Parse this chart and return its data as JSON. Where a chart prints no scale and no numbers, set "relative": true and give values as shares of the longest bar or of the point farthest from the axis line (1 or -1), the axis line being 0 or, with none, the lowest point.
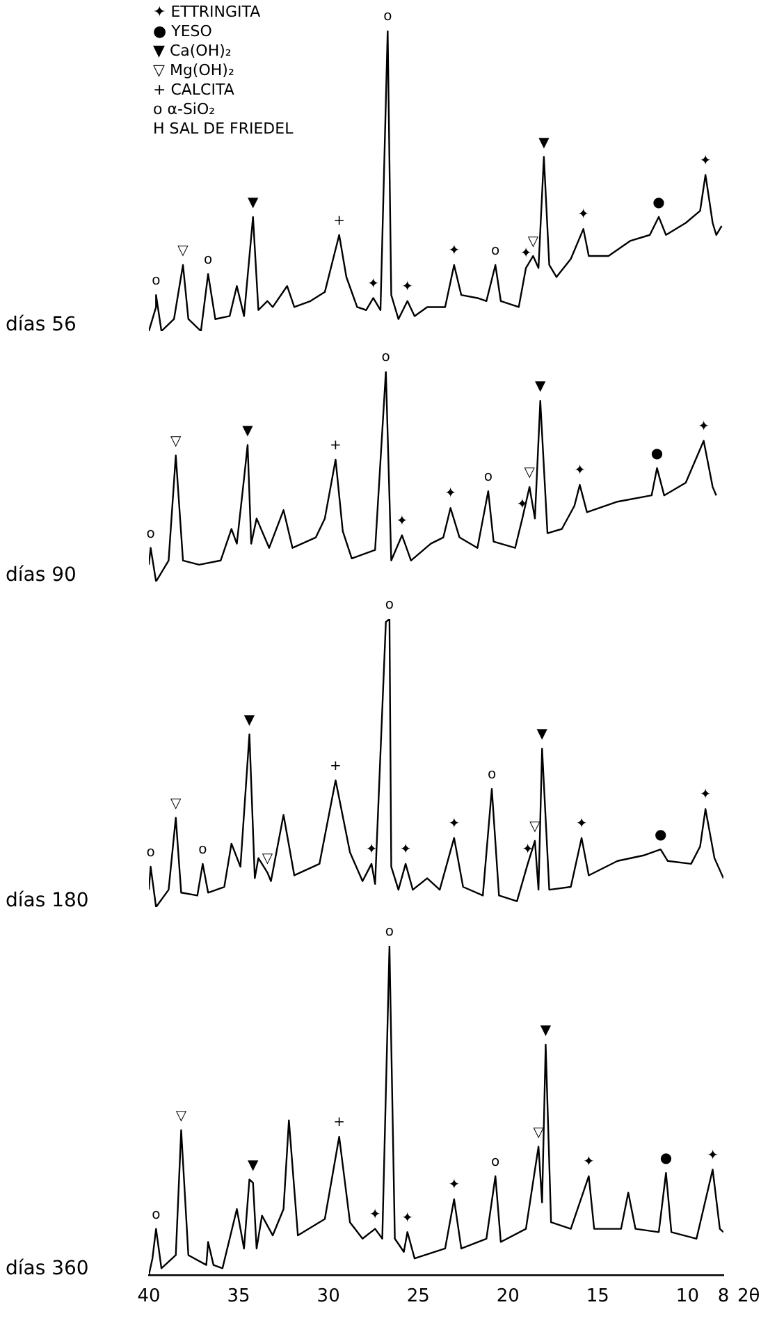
{
  "chart_data": [
    {
      "type": "line",
      "relative": true,
      "xlim": [
        40,
        8
      ],
      "tick_labels": false,
      "series": [
        {
          "name": "días 56",
          "color": "#000000",
          "x": [
            40,
            39.6,
            39.6,
            39.3,
            38.6,
            38.1,
            37.8,
            37.1,
            36.7,
            36.3,
            35.5,
            35.1,
            34.7,
            34.2,
            33.9,
            33.4,
            33.1,
            32.3,
            31.9,
            31,
            30.2,
            29.4,
            29,
            28.4,
            27.9,
            27.5,
            27.1,
            26.7,
            26.5,
            26.1,
            25.6,
            25.2,
            24.5,
            23.5,
            23,
            22.6,
            21.7,
            21.2,
            20.7,
            20.4,
            19.4,
            19,
            18.6,
            18.3,
            18,
            17.7,
            17.3,
            16.5,
            15.8,
            15.5,
            14.4,
            13.2,
            12.1,
            11.6,
            11.2,
            10.1,
            9.3,
            9,
            8.6,
            8.4,
            8.1
          ],
          "values": [
            0,
            0.08,
            0.12,
            0,
            0.04,
            0.22,
            0.04,
            0,
            0.19,
            0.04,
            0.05,
            0.15,
            0.05,
            0.38,
            0.07,
            0.1,
            0.08,
            0.15,
            0.08,
            0.1,
            0.13,
            0.32,
            0.18,
            0.08,
            0.07,
            0.11,
            0.07,
            1.0,
            0.12,
            0.04,
            0.1,
            0.05,
            0.08,
            0.08,
            0.22,
            0.12,
            0.11,
            0.1,
            0.22,
            0.1,
            0.08,
            0.21,
            0.25,
            0.21,
            0.58,
            0.22,
            0.18,
            0.24,
            0.34,
            0.25,
            0.25,
            0.3,
            0.32,
            0.38,
            0.32,
            0.36,
            0.4,
            0.52,
            0.36,
            0.32,
            0.35
          ]
        }
      ],
      "annotations": [
        "✦ ETTRINGITA",
        "● YESO",
        "▼ Ca(OH)₂",
        "▽ Mg(OH)₂",
        "+ CALCITA",
        "o α-SiO₂",
        "H SAL DE FRIEDEL",
        {
          "text": "o",
          "x": 39.6,
          "y": 0.12
        },
        {
          "text": "▽",
          "x": 38.1,
          "y": 0.22
        },
        {
          "text": "o",
          "x": 36.7,
          "y": 0.19
        },
        {
          "text": "▼",
          "x": 34.2,
          "y": 0.38
        },
        {
          "text": "+",
          "x": 29.4,
          "y": 0.32
        },
        {
          "text": "✦",
          "x": 27.5,
          "y": 0.11
        },
        {
          "text": "o",
          "x": 26.7,
          "y": 1.0
        },
        {
          "text": "✦",
          "x": 25.6,
          "y": 0.1
        },
        {
          "text": "✦",
          "x": 23,
          "y": 0.22
        },
        {
          "text": "o",
          "x": 20.7,
          "y": 0.22
        },
        {
          "text": "✦",
          "x": 19,
          "y": 0.21
        },
        {
          "text": "▽",
          "x": 18.6,
          "y": 0.25
        },
        {
          "text": "▼",
          "x": 18,
          "y": 0.58
        },
        {
          "text": "✦",
          "x": 15.8,
          "y": 0.34
        },
        {
          "text": "●",
          "x": 11.6,
          "y": 0.38
        },
        {
          "text": "✦",
          "x": 9,
          "y": 0.52
        }
      ]
    },
    {
      "type": "line",
      "relative": true,
      "xlim": [
        40,
        8
      ],
      "tick_labels": false,
      "series": [
        {
          "name": "días 90",
          "color": "#000000",
          "x": [
            40,
            39.9,
            39.6,
            38.9,
            38.5,
            38.1,
            37.2,
            36,
            35.4,
            35.1,
            34.7,
            34.5,
            34.3,
            34,
            33.3,
            32.5,
            32,
            30.7,
            30.2,
            29.6,
            29.2,
            28.7,
            27.4,
            26.8,
            26.5,
            25.9,
            25.4,
            24.3,
            23.6,
            23.2,
            22.7,
            21.7,
            21.1,
            20.8,
            19.6,
            19.2,
            18.8,
            18.5,
            18.2,
            17.8,
            17,
            16.3,
            16,
            15.6,
            13.9,
            12,
            11.7,
            11.3,
            10.1,
            9.1,
            8.6,
            8.4
          ],
          "values": [
            0.08,
            0.16,
            0,
            0.1,
            0.6,
            0.1,
            0.08,
            0.1,
            0.25,
            0.18,
            0.49,
            0.65,
            0.18,
            0.3,
            0.16,
            0.34,
            0.16,
            0.21,
            0.3,
            0.58,
            0.24,
            0.11,
            0.15,
            1.0,
            0.1,
            0.22,
            0.1,
            0.18,
            0.21,
            0.35,
            0.21,
            0.16,
            0.43,
            0.19,
            0.16,
            0.3,
            0.45,
            0.3,
            0.86,
            0.23,
            0.25,
            0.36,
            0.46,
            0.33,
            0.38,
            0.41,
            0.54,
            0.41,
            0.47,
            0.67,
            0.45,
            0.41
          ]
        }
      ],
      "annotations": [
        {
          "text": "o",
          "x": 39.9,
          "y": 0.16
        },
        {
          "text": "▽",
          "x": 38.5,
          "y": 0.6
        },
        {
          "text": "▼",
          "x": 34.5,
          "y": 0.65
        },
        {
          "text": "+",
          "x": 29.6,
          "y": 0.58
        },
        {
          "text": "o",
          "x": 26.8,
          "y": 1.0
        },
        {
          "text": "✦",
          "x": 25.9,
          "y": 0.22
        },
        {
          "text": "✦",
          "x": 23.2,
          "y": 0.35
        },
        {
          "text": "o",
          "x": 21.1,
          "y": 0.43
        },
        {
          "text": "✦",
          "x": 19.2,
          "y": 0.3
        },
        {
          "text": "▽",
          "x": 18.8,
          "y": 0.45
        },
        {
          "text": "▼",
          "x": 18.2,
          "y": 0.86
        },
        {
          "text": "✦",
          "x": 16,
          "y": 0.46
        },
        {
          "text": "●",
          "x": 11.7,
          "y": 0.54
        },
        {
          "text": "✦",
          "x": 9.1,
          "y": 0.67
        }
      ]
    },
    {
      "type": "line",
      "relative": true,
      "xlim": [
        40,
        8
      ],
      "tick_labels": false,
      "series": [
        {
          "name": "días 180",
          "color": "#000000",
          "x": [
            40,
            39.9,
            39.6,
            38.9,
            38.5,
            38.2,
            37.3,
            37,
            36.7,
            35.8,
            35.4,
            34.9,
            34.4,
            34.1,
            33.9,
            33.4,
            33.2,
            32.5,
            31.9,
            30.5,
            29.6,
            28.8,
            28.1,
            27.6,
            27.4,
            26.8,
            26.6,
            26.5,
            26.1,
            25.7,
            25.3,
            24.5,
            23.8,
            23,
            22.5,
            21.4,
            20.9,
            20.5,
            19.5,
            18.9,
            18.5,
            18.3,
            18.1,
            17.7,
            16.5,
            15.9,
            15.5,
            13.9,
            12.4,
            11.5,
            11.1,
            9.8,
            9.3,
            9,
            8.5,
            8
          ],
          "values": [
            0.06,
            0.14,
            0,
            0.06,
            0.31,
            0.05,
            0.04,
            0.15,
            0.05,
            0.07,
            0.22,
            0.14,
            0.6,
            0.1,
            0.17,
            0.12,
            0.09,
            0.32,
            0.11,
            0.15,
            0.44,
            0.19,
            0.09,
            0.15,
            0.08,
            0.99,
            1.0,
            0.14,
            0.06,
            0.15,
            0.06,
            0.1,
            0.06,
            0.24,
            0.07,
            0.04,
            0.41,
            0.04,
            0.02,
            0.15,
            0.23,
            0.06,
            0.55,
            0.06,
            0.07,
            0.24,
            0.11,
            0.16,
            0.18,
            0.2,
            0.16,
            0.15,
            0.21,
            0.34,
            0.17,
            0.1
          ]
        }
      ],
      "annotations": [
        {
          "text": "o",
          "x": 39.9,
          "y": 0.14
        },
        {
          "text": "▽",
          "x": 38.5,
          "y": 0.31
        },
        {
          "text": "o",
          "x": 37,
          "y": 0.15
        },
        {
          "text": "▼",
          "x": 34.4,
          "y": 0.6
        },
        {
          "text": "▽",
          "x": 33.4,
          "y": 0.12
        },
        {
          "text": "+",
          "x": 29.6,
          "y": 0.44
        },
        {
          "text": "✦",
          "x": 27.6,
          "y": 0.15
        },
        {
          "text": "o",
          "x": 26.6,
          "y": 1.0
        },
        {
          "text": "✦",
          "x": 25.7,
          "y": 0.15
        },
        {
          "text": "✦",
          "x": 23,
          "y": 0.24
        },
        {
          "text": "o",
          "x": 20.9,
          "y": 0.41
        },
        {
          "text": "✦",
          "x": 18.9,
          "y": 0.15
        },
        {
          "text": "▽",
          "x": 18.5,
          "y": 0.23
        },
        {
          "text": "▼",
          "x": 18.1,
          "y": 0.55
        },
        {
          "text": "✦",
          "x": 15.9,
          "y": 0.24
        },
        {
          "text": "●",
          "x": 11.5,
          "y": 0.2
        },
        {
          "text": "✦",
          "x": 9,
          "y": 0.34
        }
      ]
    },
    {
      "type": "line",
      "relative": true,
      "xlim": [
        40,
        8
      ],
      "xticks": [
        40,
        35,
        30,
        25,
        20,
        15,
        10,
        8
      ],
      "xlabel": "2θ",
      "tick_labels": "x",
      "series": [
        {
          "name": "días 360",
          "color": "#000000",
          "x": [
            40,
            39.8,
            39.6,
            39.3,
            38.5,
            38.2,
            37.8,
            36.8,
            36.7,
            36.4,
            35.9,
            35.1,
            34.7,
            34.4,
            34.2,
            34,
            33.7,
            33.1,
            32.5,
            32.2,
            31.7,
            30.2,
            29.4,
            28.8,
            28.1,
            27.4,
            27,
            26.6,
            26.3,
            25.8,
            25.6,
            25.2,
            23.5,
            23,
            22.6,
            21.2,
            20.7,
            20.4,
            19,
            18.3,
            18.1,
            17.9,
            17.6,
            16.5,
            15.5,
            15.2,
            13.7,
            13.3,
            12.9,
            11.6,
            11.2,
            10.9,
            9.5,
            8.6,
            8.2,
            8
          ],
          "values": [
            0,
            0.05,
            0.14,
            0.02,
            0.06,
            0.44,
            0.06,
            0.03,
            0.1,
            0.03,
            0.02,
            0.2,
            0.08,
            0.29,
            0.28,
            0.08,
            0.18,
            0.12,
            0.2,
            0.47,
            0.12,
            0.17,
            0.42,
            0.16,
            0.11,
            0.14,
            0.11,
            1.0,
            0.11,
            0.07,
            0.13,
            0.05,
            0.08,
            0.23,
            0.08,
            0.11,
            0.3,
            0.1,
            0.14,
            0.39,
            0.22,
            0.7,
            0.16,
            0.14,
            0.3,
            0.14,
            0.14,
            0.25,
            0.14,
            0.13,
            0.31,
            0.13,
            0.11,
            0.32,
            0.14,
            0.13
          ]
        }
      ],
      "annotations": [
        {
          "text": "o",
          "x": 39.6,
          "y": 0.14
        },
        {
          "text": "▽",
          "x": 38.2,
          "y": 0.44
        },
        {
          "text": "▼",
          "x": 34.2,
          "y": 0.29
        },
        {
          "text": "+",
          "x": 29.4,
          "y": 0.42
        },
        {
          "text": "✦",
          "x": 27.4,
          "y": 0.14
        },
        {
          "text": "o",
          "x": 26.6,
          "y": 1.0
        },
        {
          "text": "✦",
          "x": 25.6,
          "y": 0.13
        },
        {
          "text": "✦",
          "x": 23,
          "y": 0.23
        },
        {
          "text": "o",
          "x": 20.7,
          "y": 0.3
        },
        {
          "text": "▽",
          "x": 18.3,
          "y": 0.39
        },
        {
          "text": "▼",
          "x": 17.9,
          "y": 0.7
        },
        {
          "text": "✦",
          "x": 15.5,
          "y": 0.3
        },
        {
          "text": "●",
          "x": 11.2,
          "y": 0.31
        },
        {
          "text": "✦",
          "x": 8.6,
          "y": 0.32
        }
      ]
    }
  ]
}
